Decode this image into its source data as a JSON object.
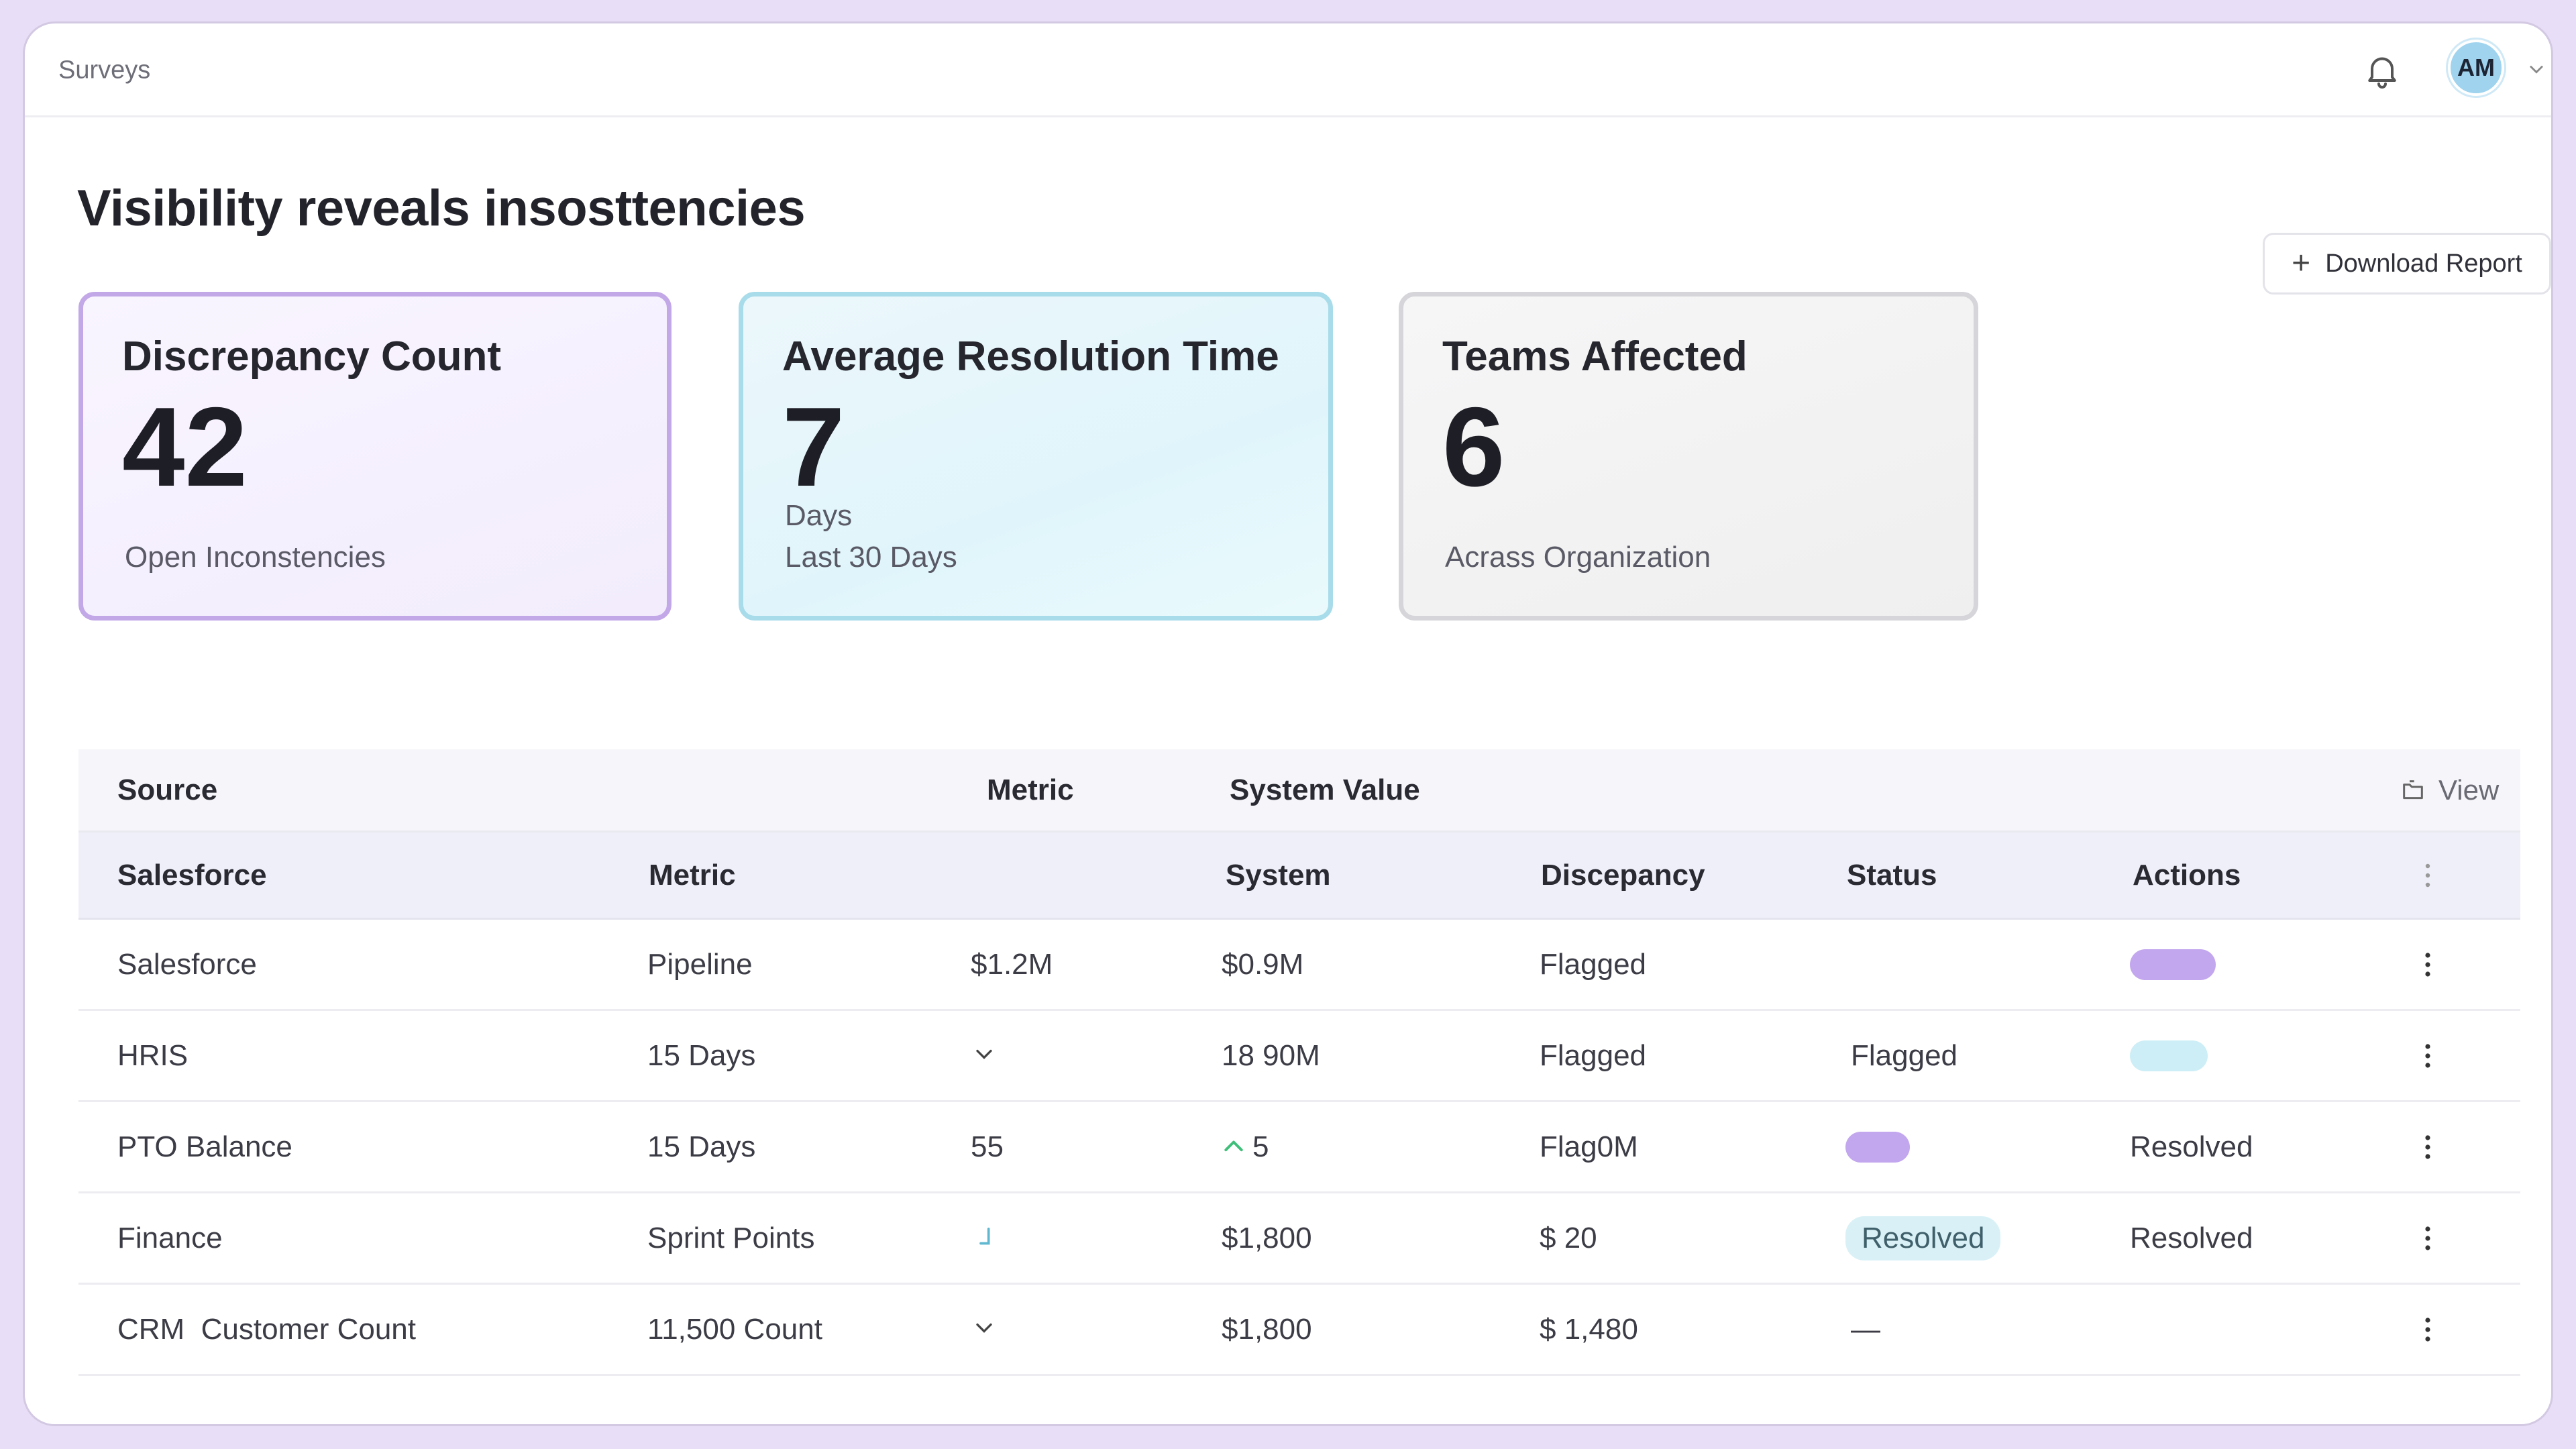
{
  "app": {
    "name": "Surveys",
    "user_initials": "AM"
  },
  "page": {
    "title": "Visibility reveals insosttencies",
    "download_label": "Download Report"
  },
  "cards": [
    {
      "title": "Discrepancy Count",
      "value": "42",
      "unit": "",
      "subtitle": "Open Inconstencies"
    },
    {
      "title": "Average Resolution Time",
      "value": "7",
      "unit": "Days",
      "subtitle": "Last 30 Days"
    },
    {
      "title": "Teams Affected",
      "value": "6",
      "unit": "",
      "subtitle": "Acrass Organization"
    }
  ],
  "table": {
    "header1": {
      "source": "Source",
      "metric": "Metric",
      "system_value": "System Value",
      "view": "View"
    },
    "header2": {
      "col1": "Salesforce",
      "col2": "Metric",
      "col3": "System",
      "col4": "Discepancy",
      "col5": "Status",
      "col6": "Actions"
    },
    "rows": [
      {
        "source": "Salesforce",
        "metric": "Pipeline",
        "expected": "$1.2M",
        "system": "$0.9M",
        "discrepancy": "Flagged",
        "status": "",
        "actions": ""
      },
      {
        "source": "HRIS",
        "metric": "15 Days",
        "expected": "",
        "system": "18 90M",
        "discrepancy": "Flagged",
        "status": "Flagged",
        "actions": ""
      },
      {
        "source": "PTO Balance",
        "metric": "15 Days",
        "expected": "55",
        "system": "5",
        "discrepancy": "Flag0M",
        "status": "",
        "actions": "Resolved"
      },
      {
        "source": "Finance",
        "metric": "Sprint Points",
        "expected": "",
        "system": "$1,800",
        "discrepancy": "$ 20",
        "status": "Resolved",
        "actions": "Resolved"
      },
      {
        "source": "CRM  Customer Count",
        "metric": "11,500 Count",
        "expected": "",
        "system": "$1,800",
        "discrepancy": "$ 1,480",
        "status": "—",
        "actions": ""
      }
    ]
  },
  "colors": {
    "accent_purple": "#c2a6ee",
    "accent_cyan": "#cdeef6",
    "trend_up": "#3fbf7a"
  },
  "icons": {
    "bell": "bell-icon",
    "chevron": "chevron-down-icon",
    "plus": "plus-icon",
    "view": "view-icon",
    "kebab": "kebab-icon",
    "trend": "trend-up-icon"
  }
}
